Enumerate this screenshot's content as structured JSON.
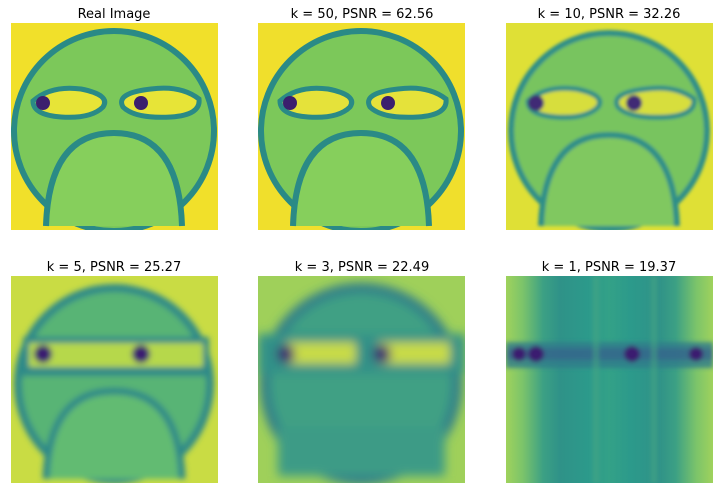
{
  "figure": {
    "panels": [
      {
        "title": "Real Image"
      },
      {
        "title": "k = 50, PSNR = 62.56"
      },
      {
        "title": "k = 10, PSNR = 32.26"
      },
      {
        "title": "k = 5, PSNR = 25.27"
      },
      {
        "title": "k = 3, PSNR = 22.49"
      },
      {
        "title": "k = 1, PSNR = 19.37"
      }
    ]
  },
  "colors": {
    "background_yellow": "#f1e02a",
    "face_green": "#7cc85a",
    "outline_teal": "#2a8a86",
    "pupil_purple": "#3b1f6e",
    "band_teal": "#279a8b"
  }
}
